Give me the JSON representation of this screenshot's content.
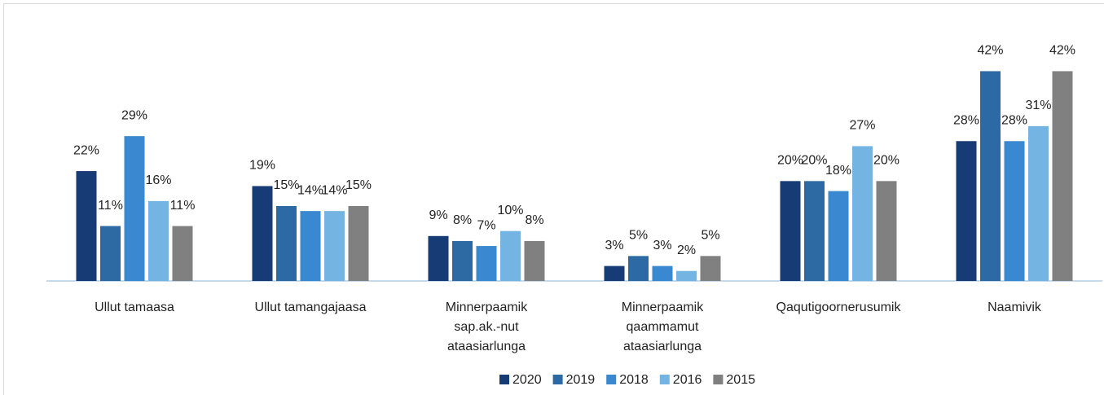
{
  "chart_data": {
    "type": "bar",
    "categories": [
      "Ullut tamaasa",
      "Ullut tamangajaasa",
      "Minnerpaamik sap.ak.-nut ataasiarlunga",
      "Minnerpaamik qaammamut ataasiarlunga",
      "Qaqutigoornerusumik",
      "Naamivik"
    ],
    "series": [
      {
        "name": "2020",
        "color": "#173b75",
        "values": [
          22,
          19,
          9,
          3,
          20,
          28
        ],
        "value_labels": [
          "22%",
          "19%",
          "9%",
          "3%",
          "20%",
          "28%"
        ]
      },
      {
        "name": "2019",
        "color": "#2d6aa3",
        "values": [
          11,
          15,
          8,
          5,
          20,
          42
        ],
        "value_labels": [
          "11%",
          "15%",
          "8%",
          "5%",
          "20%",
          "42%"
        ]
      },
      {
        "name": "2018",
        "color": "#3a88d0",
        "values": [
          29,
          14,
          7,
          3,
          18,
          28
        ],
        "value_labels": [
          "29%",
          "14%",
          "7%",
          "3%",
          "18%",
          "28%"
        ]
      },
      {
        "name": "2016",
        "color": "#74b4e3",
        "values": [
          16,
          14,
          10,
          2,
          27,
          31
        ],
        "value_labels": [
          "16%",
          "14%",
          "10%",
          "2%",
          "27%",
          "31%"
        ]
      },
      {
        "name": "2015",
        "color": "#808080",
        "values": [
          11,
          15,
          8,
          5,
          20,
          42
        ],
        "value_labels": [
          "11%",
          "15%",
          "8%",
          "5%",
          "20%",
          "42%"
        ]
      }
    ],
    "ylim": [
      0,
      45
    ],
    "legend": "bottom"
  }
}
